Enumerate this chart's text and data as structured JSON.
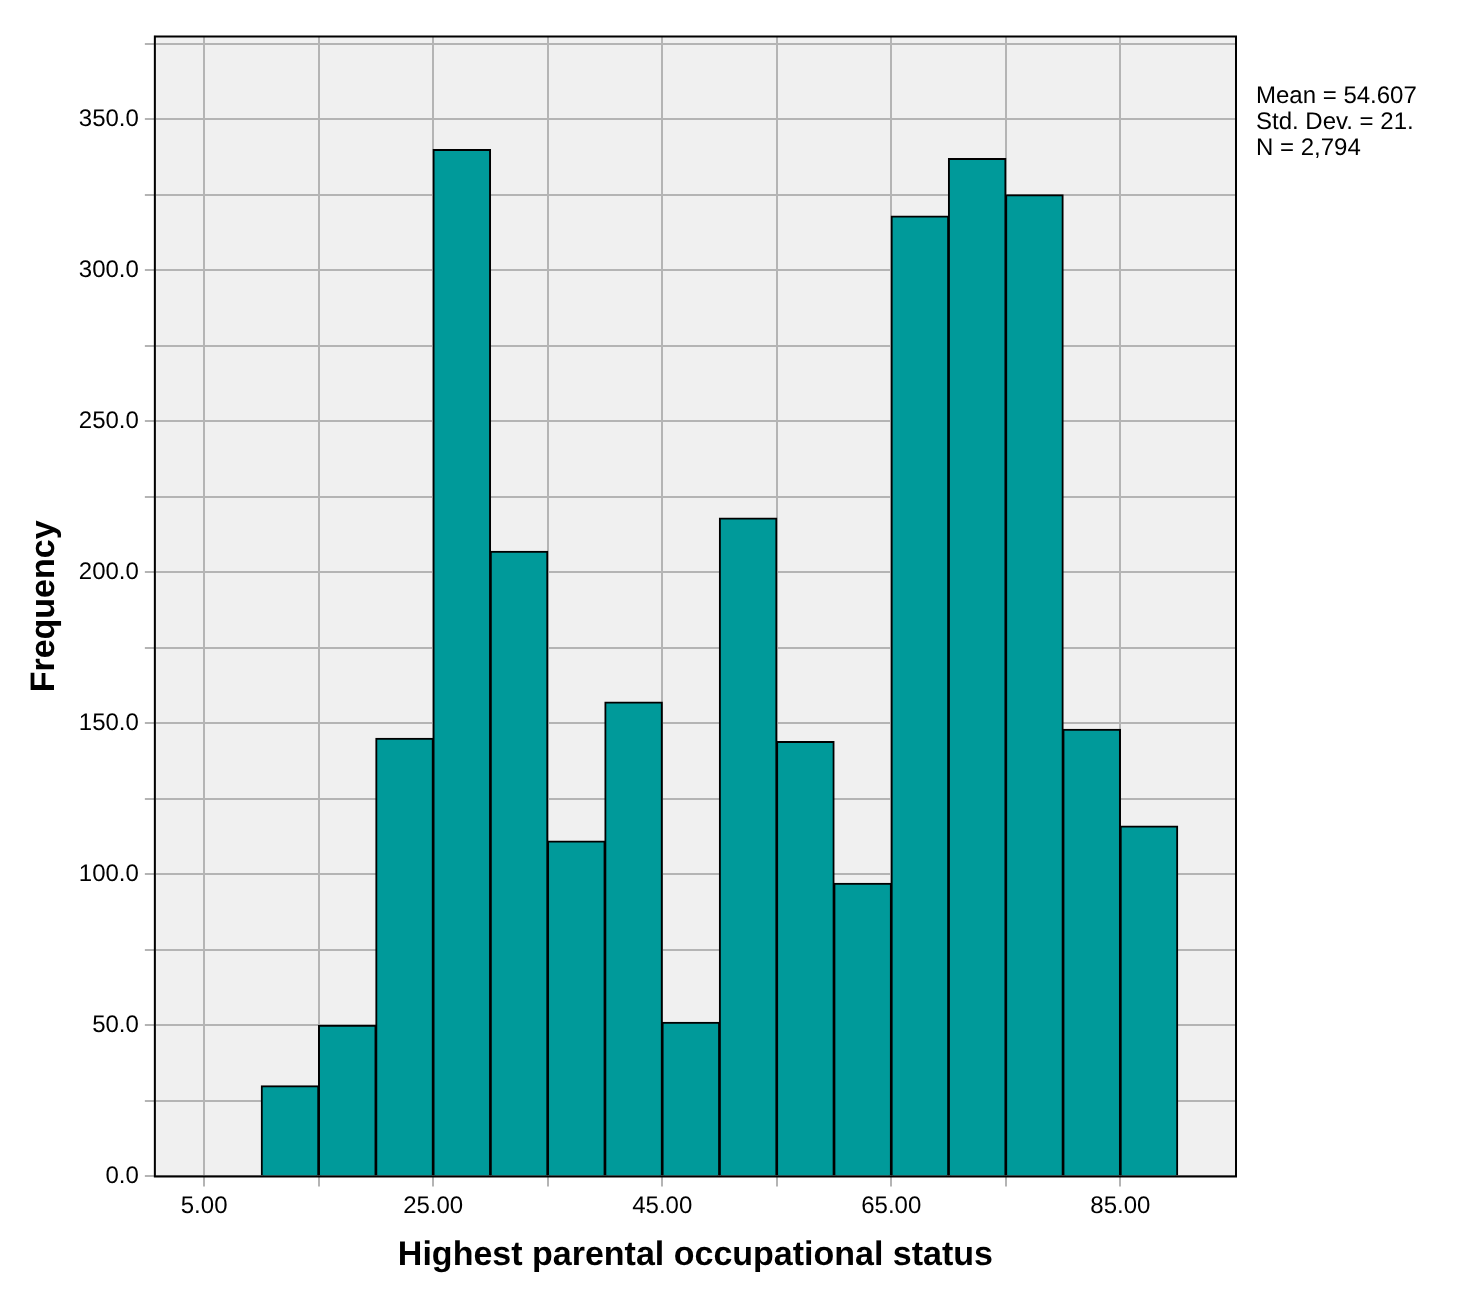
{
  "chart_data": {
    "type": "histogram",
    "xlabel": "Highest parental occupational status",
    "ylabel": "Frequency",
    "bins": [
      10,
      15,
      20,
      25,
      30,
      35,
      40,
      45,
      50,
      55,
      60,
      65,
      70,
      75,
      80,
      85,
      90
    ],
    "values": [
      30,
      50,
      145,
      340,
      207,
      111,
      157,
      51,
      218,
      144,
      97,
      318,
      337,
      325,
      148,
      116
    ],
    "color": "#009a9a",
    "xlim": [
      0.7,
      95.1
    ],
    "xticks": [
      {
        "value": 5,
        "label": "5.00"
      },
      {
        "value": 15,
        "label": null
      },
      {
        "value": 25,
        "label": "25.00"
      },
      {
        "value": 35,
        "label": null
      },
      {
        "value": 45,
        "label": "45.00"
      },
      {
        "value": 55,
        "label": null
      },
      {
        "value": 65,
        "label": "65.00"
      },
      {
        "value": 75,
        "label": null
      },
      {
        "value": 85,
        "label": "85.00"
      }
    ],
    "ylim": [
      0,
      377.5
    ],
    "yticks": [
      {
        "value": 0,
        "label": "0.0"
      },
      {
        "value": 25,
        "label": null
      },
      {
        "value": 50,
        "label": "50.0"
      },
      {
        "value": 75,
        "label": null
      },
      {
        "value": 100,
        "label": "100.0"
      },
      {
        "value": 125,
        "label": null
      },
      {
        "value": 150,
        "label": "150.0"
      },
      {
        "value": 175,
        "label": null
      },
      {
        "value": 200,
        "label": "200.0"
      },
      {
        "value": 225,
        "label": null
      },
      {
        "value": 250,
        "label": "250.0"
      },
      {
        "value": 275,
        "label": null
      },
      {
        "value": 300,
        "label": "300.0"
      },
      {
        "value": 325,
        "label": null
      },
      {
        "value": 350,
        "label": "350.0"
      },
      {
        "value": 375,
        "label": null
      }
    ],
    "grid": true,
    "annotations": [
      "Mean = 54.607",
      "Std. Dev. = 21.",
      "N = 2,794"
    ]
  }
}
